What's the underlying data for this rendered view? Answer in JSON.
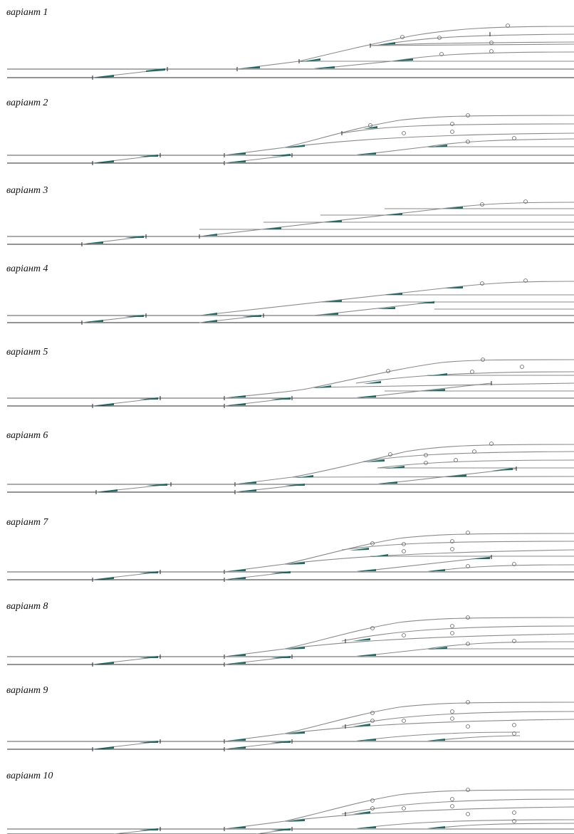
{
  "variants": [
    {
      "label": "варіант 1"
    },
    {
      "label": "варіант 2"
    },
    {
      "label": "варіант 3"
    },
    {
      "label": "варіант 4"
    },
    {
      "label": "варіант 5"
    },
    {
      "label": "варіант 6"
    },
    {
      "label": "варіант 7"
    },
    {
      "label": "варіант 8"
    },
    {
      "label": "варіант 9"
    },
    {
      "label": "варіант 10"
    }
  ]
}
